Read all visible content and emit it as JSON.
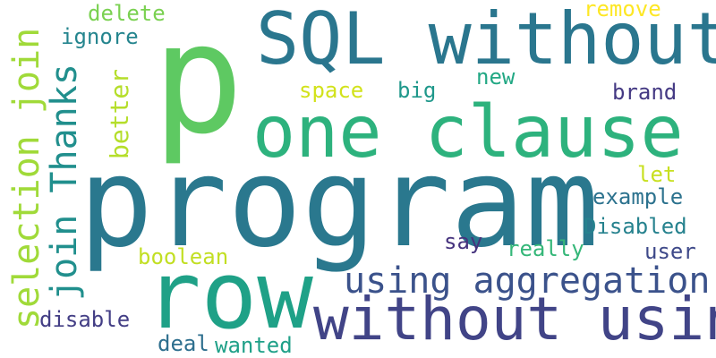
{
  "words": [
    {
      "id": "p",
      "text": "p",
      "color": "#5ec962"
    },
    {
      "id": "program",
      "text": "program",
      "color": "#2a788e"
    },
    {
      "id": "row",
      "text": "row",
      "color": "#1fa187"
    },
    {
      "id": "one_clause",
      "text": "one clause",
      "color": "#2db27d"
    },
    {
      "id": "sql_without",
      "text": "SQL without",
      "color": "#2a768e"
    },
    {
      "id": "without_using",
      "text": "without using",
      "color": "#414487"
    },
    {
      "id": "using_aggregation",
      "text": "using aggregation",
      "color": "#3b528b"
    },
    {
      "id": "selection_join",
      "text": "selection join",
      "color": "#a0da39"
    },
    {
      "id": "join_thanks",
      "text": "join Thanks",
      "color": "#218f8d"
    },
    {
      "id": "delete",
      "text": "delete",
      "color": "#7ad151"
    },
    {
      "id": "ignore",
      "text": "ignore",
      "color": "#25858e"
    },
    {
      "id": "remove",
      "text": "remove",
      "color": "#fde725"
    },
    {
      "id": "new",
      "text": "new",
      "color": "#22a884"
    },
    {
      "id": "space",
      "text": "space",
      "color": "#d2e21b"
    },
    {
      "id": "big",
      "text": "big",
      "color": "#1f988b"
    },
    {
      "id": "brand",
      "text": "brand",
      "color": "#443983"
    },
    {
      "id": "better",
      "text": "better",
      "color": "#b5de2b"
    },
    {
      "id": "let",
      "text": "let",
      "color": "#c8e020"
    },
    {
      "id": "example",
      "text": "example",
      "color": "#2c728e"
    },
    {
      "id": "disabled",
      "text": "Disabled",
      "color": "#26828e"
    },
    {
      "id": "say",
      "text": "say",
      "color": "#46337e"
    },
    {
      "id": "really",
      "text": "really",
      "color": "#35b779"
    },
    {
      "id": "user",
      "text": "user",
      "color": "#3e4989"
    },
    {
      "id": "boolean",
      "text": "boolean",
      "color": "#c2df23"
    },
    {
      "id": "disable",
      "text": "disable",
      "color": "#433e85"
    },
    {
      "id": "deal",
      "text": "deal",
      "color": "#2e6f8e"
    },
    {
      "id": "wanted",
      "text": "wanted",
      "color": "#1fa088"
    }
  ]
}
